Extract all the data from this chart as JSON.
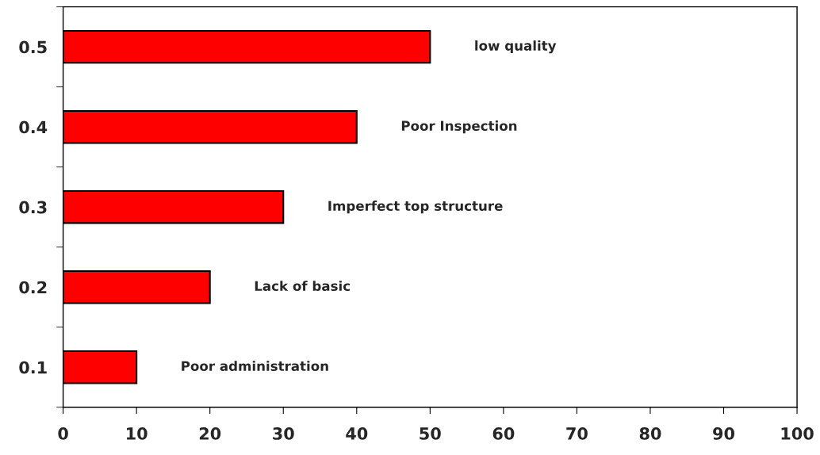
{
  "chart_data": {
    "type": "bar",
    "orientation": "horizontal",
    "categories": [
      "0.5",
      "0.4",
      "0.3",
      "0.2",
      "0.1"
    ],
    "values": [
      50,
      40,
      30,
      20,
      10
    ],
    "color": "#ff0000",
    "xlim": [
      0,
      100
    ],
    "xticks": [
      0,
      10,
      20,
      30,
      40,
      50,
      60,
      70,
      80,
      90,
      100
    ],
    "grid": false,
    "legend": false,
    "annotations": [
      "low quality",
      "Poor Inspection",
      "Imperfect top structure",
      "Lack of basic",
      "Poor administration"
    ]
  }
}
